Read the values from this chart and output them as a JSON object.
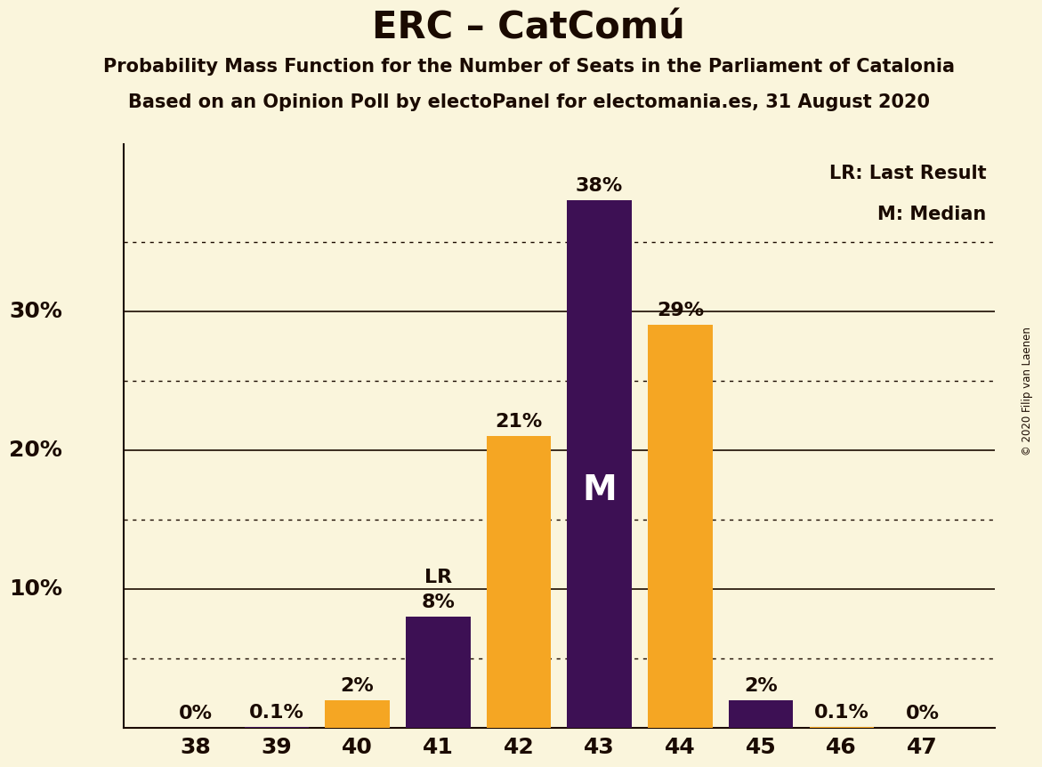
{
  "title": "ERC – CatComú",
  "subtitle1": "Probability Mass Function for the Number of Seats in the Parliament of Catalonia",
  "subtitle2": "Based on an Opinion Poll by electoPanel for electomania.es, 31 August 2020",
  "copyright": "© 2020 Filip van Laenen",
  "categories": [
    38,
    39,
    40,
    41,
    42,
    43,
    44,
    45,
    46,
    47
  ],
  "values": [
    0.0,
    0.001,
    0.02,
    0.08,
    0.21,
    0.38,
    0.29,
    0.02,
    0.001,
    0.0
  ],
  "labels": [
    "0%",
    "0.1%",
    "2%",
    "8%",
    "21%",
    "38%",
    "29%",
    "2%",
    "0.1%",
    "0%"
  ],
  "background_color": "#faf5dc",
  "bar_dark_color": "#3d1054",
  "bar_orange_color": "#f5a623",
  "title_color": "#1a0a00",
  "solid_gridlines": [
    0.1,
    0.2,
    0.3
  ],
  "ytick_labels": [
    "10%",
    "20%",
    "30%"
  ],
  "dotted_gridlines": [
    0.05,
    0.15,
    0.25,
    0.35
  ],
  "ylim": [
    0,
    0.42
  ],
  "xlim": [
    37.1,
    47.9
  ]
}
